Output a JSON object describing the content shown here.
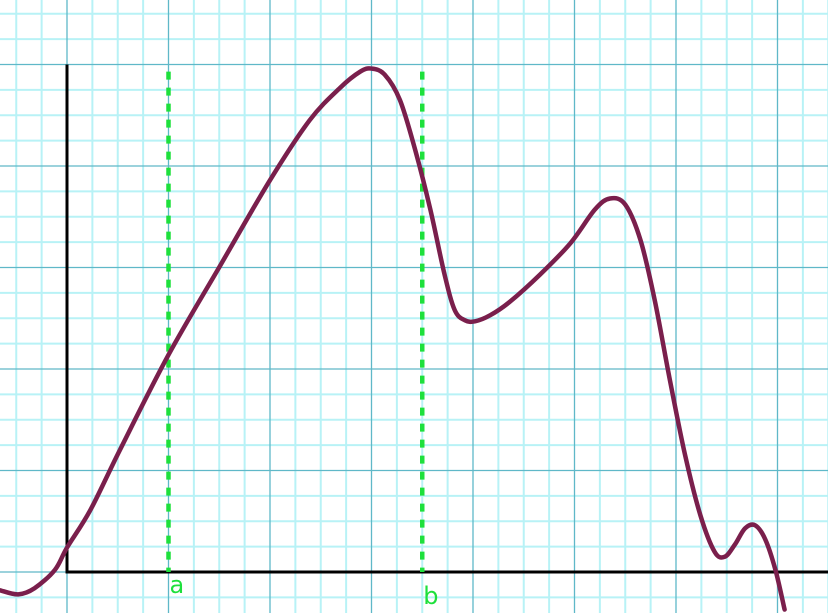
{
  "chart_data": {
    "type": "line",
    "grid": true,
    "grid_minor_per_major": 4,
    "xlim": [
      -0.66,
      7.5
    ],
    "ylim": [
      -0.4,
      5.0
    ],
    "curve": {
      "color": "#7a1f4c",
      "points": [
        [
          -0.66,
          -0.18
        ],
        [
          -0.48,
          -0.22
        ],
        [
          -0.32,
          -0.16
        ],
        [
          -0.12,
          0.02
        ],
        [
          0,
          0.24
        ],
        [
          0.23,
          0.61
        ],
        [
          0.52,
          1.2
        ],
        [
          1.0,
          2.14
        ],
        [
          1.51,
          3.02
        ],
        [
          2.0,
          3.86
        ],
        [
          2.39,
          4.45
        ],
        [
          2.69,
          4.77
        ],
        [
          2.89,
          4.93
        ],
        [
          3.0,
          4.96
        ],
        [
          3.13,
          4.9
        ],
        [
          3.28,
          4.65
        ],
        [
          3.43,
          4.16
        ],
        [
          3.58,
          3.57
        ],
        [
          3.72,
          2.93
        ],
        [
          3.82,
          2.58
        ],
        [
          3.92,
          2.48
        ],
        [
          4.02,
          2.47
        ],
        [
          4.17,
          2.53
        ],
        [
          4.36,
          2.66
        ],
        [
          4.66,
          2.93
        ],
        [
          4.96,
          3.24
        ],
        [
          5.2,
          3.57
        ],
        [
          5.35,
          3.68
        ],
        [
          5.5,
          3.62
        ],
        [
          5.65,
          3.27
        ],
        [
          5.79,
          2.68
        ],
        [
          5.94,
          1.89
        ],
        [
          6.09,
          1.15
        ],
        [
          6.24,
          0.56
        ],
        [
          6.38,
          0.2
        ],
        [
          6.48,
          0.15
        ],
        [
          6.58,
          0.27
        ],
        [
          6.68,
          0.43
        ],
        [
          6.78,
          0.46
        ],
        [
          6.88,
          0.32
        ],
        [
          6.98,
          0.02
        ],
        [
          7.07,
          -0.37
        ]
      ]
    },
    "markers": [
      {
        "label": "a",
        "x": 1.0
      },
      {
        "label": "b",
        "x": 3.5
      }
    ],
    "marker_color": "#1ee03c",
    "axis_color": "#000000",
    "grid_major_color": "#5fb8c8",
    "grid_minor_color": "#b8f2f6"
  }
}
